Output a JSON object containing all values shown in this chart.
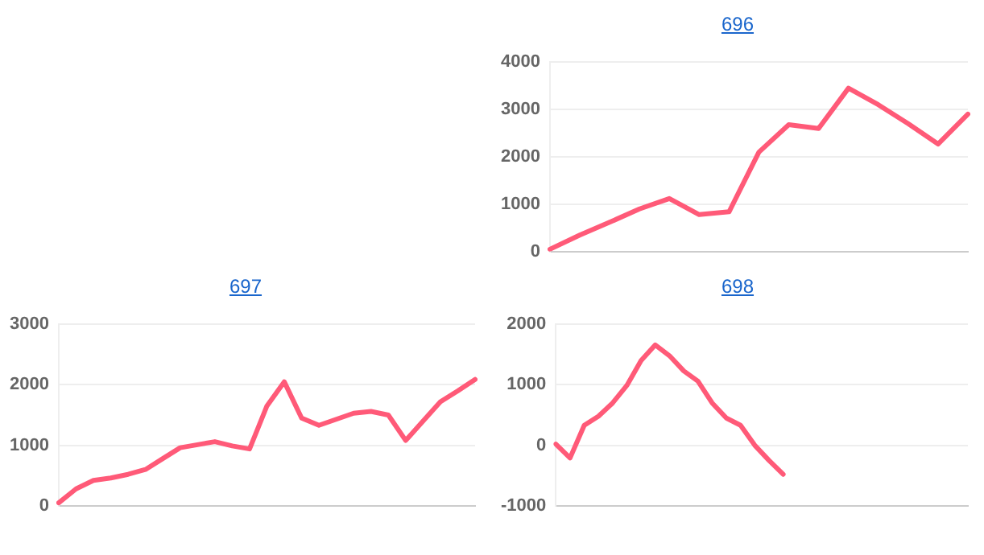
{
  "chart_data": [
    {
      "type": "line",
      "title": "696",
      "categories": [
        null,
        null,
        null,
        null,
        null,
        null,
        null,
        null,
        null,
        null,
        null,
        null,
        null,
        null,
        null
      ],
      "series": [
        {
          "color": "#ff5a78",
          "values": [
            50,
            350,
            620,
            900,
            1120,
            780,
            840,
            2100,
            2680,
            2600,
            3450,
            3100,
            2700,
            2270,
            2900
          ]
        }
      ],
      "ylim": [
        0,
        4000
      ],
      "yticks": [
        0,
        1000,
        2000,
        3000,
        4000
      ],
      "grid": "y",
      "legend": false,
      "marker": "none",
      "line_style": "solid",
      "tick_labels": "y"
    },
    {
      "type": "line",
      "title": "697",
      "categories": [
        null,
        null,
        null,
        null,
        null,
        null,
        null,
        null,
        null,
        null,
        null,
        null,
        null,
        null,
        null,
        null,
        null,
        null,
        null,
        null,
        null,
        null,
        null,
        null,
        null
      ],
      "series": [
        {
          "color": "#ff5a78",
          "values": [
            50,
            280,
            420,
            460,
            520,
            600,
            780,
            960,
            1010,
            1060,
            990,
            940,
            1650,
            2050,
            1450,
            1330,
            1430,
            1530,
            1560,
            1500,
            1080,
            1400,
            1720,
            1900,
            2090
          ]
        }
      ],
      "ylim": [
        0,
        3000
      ],
      "yticks": [
        0,
        1000,
        2000,
        3000
      ],
      "grid": "y",
      "legend": false,
      "marker": "none",
      "line_style": "solid",
      "tick_labels": "y"
    },
    {
      "type": "line",
      "title": "698",
      "categories": [
        null,
        null,
        null,
        null,
        null,
        null,
        null,
        null,
        null,
        null,
        null,
        null,
        null,
        null,
        null,
        null,
        null,
        null,
        null,
        null,
        null,
        null,
        null,
        null,
        null,
        null,
        null,
        null,
        null,
        null
      ],
      "series": [
        {
          "color": "#ff5a78",
          "values": [
            20,
            -210,
            330,
            480,
            700,
            990,
            1400,
            1660,
            1480,
            1230,
            1060,
            700,
            450,
            330,
            0,
            -250,
            -480,
            null,
            null,
            null,
            null,
            null,
            null,
            null,
            null,
            null,
            null,
            null,
            null,
            null
          ]
        }
      ],
      "ylim": [
        -1000,
        2000
      ],
      "yticks": [
        -1000,
        0,
        1000,
        2000
      ],
      "grid": "y",
      "legend": false,
      "marker": "none",
      "line_style": "solid",
      "tick_labels": "y"
    }
  ]
}
